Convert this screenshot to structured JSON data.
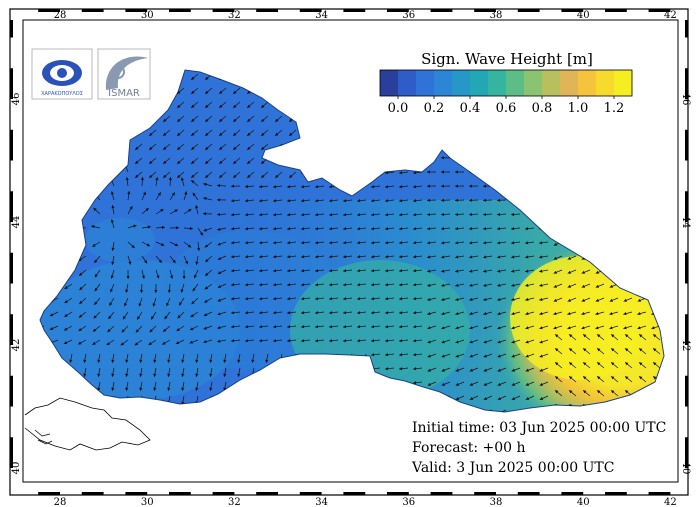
{
  "legend": {
    "title": "Sign. Wave Height [m]",
    "colors": [
      "#2a3f9c",
      "#2e5cc8",
      "#2f72d8",
      "#2b86d6",
      "#2597c8",
      "#22a7b4",
      "#35b4a0",
      "#5cbd86",
      "#8bc471",
      "#b8bf5e",
      "#dfb556",
      "#f5c33c",
      "#f6db2c",
      "#f4ee22"
    ],
    "labels": [
      "0.0",
      "0.2",
      "0.4",
      "0.6",
      "0.8",
      "1.0",
      "1.2"
    ]
  },
  "axes": {
    "lon_ticks": [
      "28",
      "30",
      "32",
      "34",
      "36",
      "38",
      "40",
      "42"
    ],
    "lat_ticks": [
      "40",
      "42",
      "44",
      "46"
    ]
  },
  "info": {
    "initial": "Initial time: 03 Jun 2025 00:00 UTC",
    "forecast": "Forecast: +00 h",
    "valid": "Valid:  3 Jun 2025 00:00 UTC"
  },
  "logos": {
    "left_text": "ΧΑΡΑΚΟΠΟΥΛΟΣ",
    "right_text": "ISMAR"
  }
}
